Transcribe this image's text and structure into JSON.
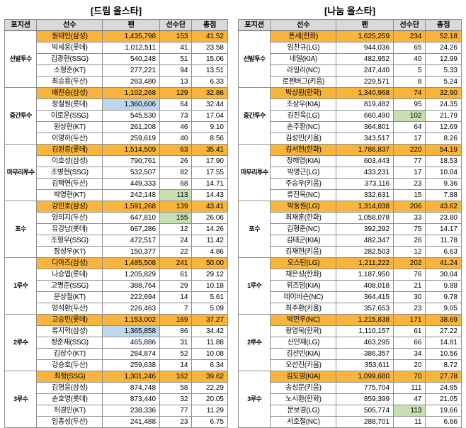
{
  "colors": {
    "winner_row_bg": "#F8B43C",
    "fan_leader_bg": "#BDD7EE",
    "player_vote_leader_bg": "#C6E0B4",
    "header_bg": "#D9D9D9"
  },
  "chart_data": [
    {
      "type": "table",
      "title": "[드림 올스타]",
      "columns": [
        "포지션",
        "선수",
        "팬",
        "선수단",
        "총점"
      ],
      "positions": [
        {
          "position": "선발투수",
          "rows": [
            {
              "player": "원태인(삼성)",
              "fan": "1,435,798",
              "squad": "153",
              "total": "41.52",
              "win": true
            },
            {
              "player": "박세웅(롯데)",
              "fan": "1,012,511",
              "squad": "41",
              "total": "23.58"
            },
            {
              "player": "김광현(SSG)",
              "fan": "540,248",
              "squad": "51",
              "total": "15.06"
            },
            {
              "player": "소형준(KT)",
              "fan": "277,221",
              "squad": "94",
              "total": "13.51"
            },
            {
              "player": "최승용(두산)",
              "fan": "263,480",
              "squad": "13",
              "total": "6.33"
            }
          ]
        },
        {
          "position": "중간투수",
          "rows": [
            {
              "player": "배찬승(삼성)",
              "fan": "1,102,268",
              "squad": "129",
              "total": "32.86",
              "win": true
            },
            {
              "player": "정철원(롯데)",
              "fan": "1,360,606",
              "squad": "64",
              "total": "32.44",
              "fan_hl": true
            },
            {
              "player": "이로운(SSG)",
              "fan": "545,530",
              "squad": "73",
              "total": "17.04"
            },
            {
              "player": "원상현(KT)",
              "fan": "261,208",
              "squad": "46",
              "total": "9.10"
            },
            {
              "player": "이영하(두산)",
              "fan": "259,619",
              "squad": "40",
              "total": "8.56"
            }
          ]
        },
        {
          "position": "마무리투수",
          "rows": [
            {
              "player": "김원중(롯데)",
              "fan": "1,514,509",
              "squad": "63",
              "total": "35.41",
              "win": true
            },
            {
              "player": "이호성(삼성)",
              "fan": "790,761",
              "squad": "26",
              "total": "17.90"
            },
            {
              "player": "조병현(SSG)",
              "fan": "532,507",
              "squad": "82",
              "total": "17.55"
            },
            {
              "player": "김택연(두산)",
              "fan": "449,333",
              "squad": "68",
              "total": "14.71"
            },
            {
              "player": "박영현(KT)",
              "fan": "242,148",
              "squad": "113",
              "total": "14.43",
              "squad_hl": true
            }
          ]
        },
        {
          "position": "포수",
          "rows": [
            {
              "player": "강민호(삼성)",
              "fan": "1,591,268",
              "squad": "139",
              "total": "43.41",
              "win": true
            },
            {
              "player": "양의지(두산)",
              "fan": "647,810",
              "squad": "155",
              "total": "26.06",
              "squad_hl": true
            },
            {
              "player": "유강남(롯데)",
              "fan": "667,286",
              "squad": "12",
              "total": "14.26"
            },
            {
              "player": "조형우(SSG)",
              "fan": "472,517",
              "squad": "24",
              "total": "11.42"
            },
            {
              "player": "장성우(KT)",
              "fan": "150,377",
              "squad": "22",
              "total": "4.86"
            }
          ]
        },
        {
          "position": "1루수",
          "rows": [
            {
              "player": "디아즈(삼성)",
              "fan": "1,485,508",
              "squad": "241",
              "total": "50.00",
              "win": true
            },
            {
              "player": "나승엽(롯데)",
              "fan": "1,205,829",
              "squad": "61",
              "total": "29.12"
            },
            {
              "player": "고명준(SSG)",
              "fan": "388,764",
              "squad": "29",
              "total": "10.18"
            },
            {
              "player": "문상철(KT)",
              "fan": "222,694",
              "squad": "14",
              "total": "5.61"
            },
            {
              "player": "양석환(두산)",
              "fan": "226,463",
              "squad": "7",
              "total": "5.09"
            }
          ]
        },
        {
          "position": "2루수",
          "rows": [
            {
              "player": "고승민(롯데)",
              "fan": "1,153,002",
              "squad": "169",
              "total": "37.27",
              "win": true
            },
            {
              "player": "류지혁(삼성)",
              "fan": "1,365,858",
              "squad": "86",
              "total": "34.42",
              "fan_hl": true
            },
            {
              "player": "정준재(SSG)",
              "fan": "465,886",
              "squad": "31",
              "total": "11.88"
            },
            {
              "player": "김상수(KT)",
              "fan": "284,874",
              "squad": "52",
              "total": "10.08"
            },
            {
              "player": "강승호(두산)",
              "fan": "259,638",
              "squad": "14",
              "total": "6.34"
            }
          ]
        },
        {
          "position": "3루수",
          "rows": [
            {
              "player": "최정(SSG)",
              "fan": "1,301,246",
              "squad": "162",
              "total": "39.62",
              "win": true
            },
            {
              "player": "김영웅(삼성)",
              "fan": "874,748",
              "squad": "58",
              "total": "22.29"
            },
            {
              "player": "손호영(롯데)",
              "fan": "873,440",
              "squad": "32",
              "total": "20.05"
            },
            {
              "player": "허경민(KT)",
              "fan": "238,336",
              "squad": "77",
              "total": "11.29"
            },
            {
              "player": "임종성(두산)",
              "fan": "241,488",
              "squad": "23",
              "total": "6.75"
            }
          ]
        }
      ]
    },
    {
      "type": "table",
      "title": "[나눔 올스타]",
      "columns": [
        "포지션",
        "선수",
        "팬",
        "선수단",
        "총점"
      ],
      "positions": [
        {
          "position": "선발투수",
          "rows": [
            {
              "player": "폰세(한화)",
              "fan": "1,625,259",
              "squad": "234",
              "total": "52.18",
              "win": true
            },
            {
              "player": "임찬규(LG)",
              "fan": "944,036",
              "squad": "65",
              "total": "24.26"
            },
            {
              "player": "네일(KIA)",
              "fan": "482,952",
              "squad": "40",
              "total": "12.99"
            },
            {
              "player": "라일리(NC)",
              "fan": "247,440",
              "squad": "5",
              "total": "5.33"
            },
            {
              "player": "로젠버그(키움)",
              "fan": "229,571",
              "squad": "8",
              "total": "5.24"
            }
          ]
        },
        {
          "position": "중간투수",
          "rows": [
            {
              "player": "박상원(한화)",
              "fan": "1,340,968",
              "squad": "74",
              "total": "32.90",
              "win": true
            },
            {
              "player": "조상우(KIA)",
              "fan": "819,482",
              "squad": "95",
              "total": "24.35"
            },
            {
              "player": "김진욱(LG)",
              "fan": "660,490",
              "squad": "102",
              "total": "21.79",
              "squad_hl": true
            },
            {
              "player": "손주환(NC)",
              "fan": "364,801",
              "squad": "64",
              "total": "12.69"
            },
            {
              "player": "김성민(키움)",
              "fan": "343,517",
              "squad": "17",
              "total": "8.26"
            }
          ]
        },
        {
          "position": "마무리투수",
          "rows": [
            {
              "player": "김서현(한화)",
              "fan": "1,786,837",
              "squad": "220",
              "total": "54.19",
              "win": true
            },
            {
              "player": "정해영(KIA)",
              "fan": "603,443",
              "squad": "77",
              "total": "18.53"
            },
            {
              "player": "박명근(LG)",
              "fan": "433,231",
              "squad": "17",
              "total": "10.04"
            },
            {
              "player": "주승우(키움)",
              "fan": "373,116",
              "squad": "23",
              "total": "9.36"
            },
            {
              "player": "류진욱(NC)",
              "fan": "332,631",
              "squad": "15",
              "total": "7.88"
            }
          ]
        },
        {
          "position": "포수",
          "rows": [
            {
              "player": "박동원(LG)",
              "fan": "1,314,038",
              "squad": "206",
              "total": "43.62",
              "win": true
            },
            {
              "player": "최재훈(한화)",
              "fan": "1,058,078",
              "squad": "33",
              "total": "23.80"
            },
            {
              "player": "김형준(NC)",
              "fan": "392,292",
              "squad": "75",
              "total": "14.17"
            },
            {
              "player": "김태군(KIA)",
              "fan": "482,347",
              "squad": "26",
              "total": "11.78"
            },
            {
              "player": "김재현(키움)",
              "fan": "282,503",
              "squad": "12",
              "total": "6.63"
            }
          ]
        },
        {
          "position": "1루수",
          "rows": [
            {
              "player": "오스틴(LG)",
              "fan": "1,211,222",
              "squad": "202",
              "total": "41.24",
              "win": true
            },
            {
              "player": "채은성(한화)",
              "fan": "1,187,950",
              "squad": "76",
              "total": "30.04"
            },
            {
              "player": "위즈덤(KIA)",
              "fan": "408,018",
              "squad": "21",
              "total": "9.88"
            },
            {
              "player": "데이비슨(NC)",
              "fan": "364,415",
              "squad": "30",
              "total": "9.78"
            },
            {
              "player": "최주환(키움)",
              "fan": "357,653",
              "squad": "23",
              "total": "9.05"
            }
          ]
        },
        {
          "position": "2루수",
          "rows": [
            {
              "player": "박민우(NC)",
              "fan": "1,215,838",
              "squad": "171",
              "total": "38.69",
              "win": true
            },
            {
              "player": "황영묵(한화)",
              "fan": "1,110,157",
              "squad": "61",
              "total": "27.22"
            },
            {
              "player": "신민재(LG)",
              "fan": "463,295",
              "squad": "66",
              "total": "14.81"
            },
            {
              "player": "김선빈(KIA)",
              "fan": "386,357",
              "squad": "34",
              "total": "10.56"
            },
            {
              "player": "오선진(키움)",
              "fan": "353,611",
              "squad": "20",
              "total": "8.72"
            }
          ]
        },
        {
          "position": "3루수",
          "rows": [
            {
              "player": "김도영(KIA)",
              "fan": "1,099,680",
              "squad": "70",
              "total": "27.78",
              "win": true
            },
            {
              "player": "송성문(키움)",
              "fan": "775,704",
              "squad": "111",
              "total": "24.85"
            },
            {
              "player": "노시환(한화)",
              "fan": "859,399",
              "squad": "47",
              "total": "21.05"
            },
            {
              "player": "문보경(LG)",
              "fan": "505,774",
              "squad": "113",
              "total": "19.66",
              "squad_hl": true
            },
            {
              "player": "서호철(NC)",
              "fan": "288,701",
              "squad": "11",
              "total": "6.66"
            }
          ]
        }
      ]
    }
  ]
}
